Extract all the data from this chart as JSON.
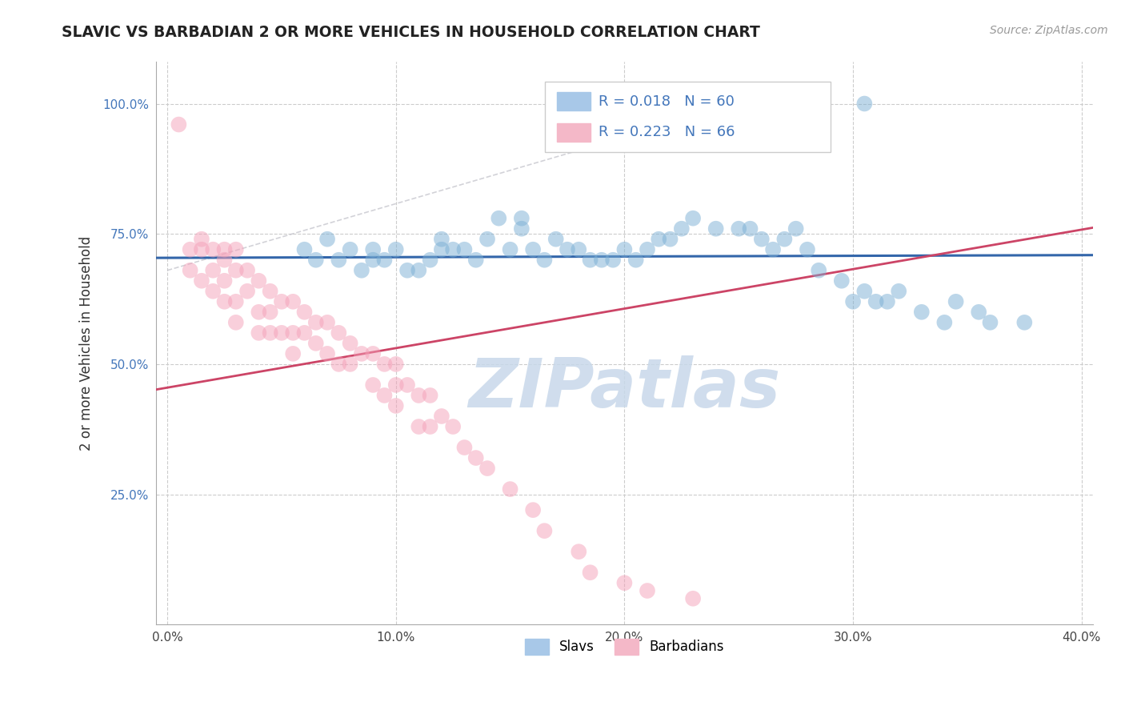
{
  "title": "SLAVIC VS BARBADIAN 2 OR MORE VEHICLES IN HOUSEHOLD CORRELATION CHART",
  "source": "Source: ZipAtlas.com",
  "ylabel": "2 or more Vehicles in Household",
  "x_tick_labels": [
    "0.0%",
    "10.0%",
    "20.0%",
    "30.0%",
    "40.0%"
  ],
  "x_tick_values": [
    0.0,
    0.1,
    0.2,
    0.3,
    0.4
  ],
  "y_tick_labels": [
    "25.0%",
    "50.0%",
    "75.0%",
    "100.0%"
  ],
  "y_tick_values": [
    0.25,
    0.5,
    0.75,
    1.0
  ],
  "xlim": [
    -0.005,
    0.405
  ],
  "ylim": [
    0.0,
    1.08
  ],
  "slavs_color": "#7bafd4",
  "barbadians_color": "#f4a0b8",
  "trend_slavs_color": "#3366aa",
  "trend_barbadians_color": "#cc4466",
  "trend_slavs_dash_color": "#c0c8d8",
  "grid_color": "#cccccc",
  "grid_style": "--",
  "watermark_color": "#c8d8ea",
  "legend_border_color": "#cccccc",
  "legend_text_color": "#4477bb",
  "slavs_legend_color": "#a8c8e8",
  "barbadians_legend_color": "#f4b8c8",
  "slavs_R": 0.018,
  "slavs_N": 60,
  "barbadians_R": 0.223,
  "barbadians_N": 66,
  "slavs_x": [
    0.06,
    0.065,
    0.07,
    0.075,
    0.08,
    0.085,
    0.09,
    0.09,
    0.095,
    0.1,
    0.105,
    0.11,
    0.115,
    0.12,
    0.12,
    0.125,
    0.13,
    0.135,
    0.14,
    0.145,
    0.15,
    0.155,
    0.155,
    0.16,
    0.165,
    0.17,
    0.175,
    0.18,
    0.185,
    0.19,
    0.195,
    0.2,
    0.205,
    0.21,
    0.215,
    0.22,
    0.225,
    0.23,
    0.24,
    0.25,
    0.255,
    0.26,
    0.265,
    0.27,
    0.275,
    0.28,
    0.285,
    0.295,
    0.3,
    0.305,
    0.31,
    0.315,
    0.32,
    0.33,
    0.34,
    0.345,
    0.355,
    0.36,
    0.375,
    0.305
  ],
  "slavs_y": [
    0.72,
    0.7,
    0.74,
    0.7,
    0.72,
    0.68,
    0.72,
    0.7,
    0.7,
    0.72,
    0.68,
    0.68,
    0.7,
    0.74,
    0.72,
    0.72,
    0.72,
    0.7,
    0.74,
    0.78,
    0.72,
    0.78,
    0.76,
    0.72,
    0.7,
    0.74,
    0.72,
    0.72,
    0.7,
    0.7,
    0.7,
    0.72,
    0.7,
    0.72,
    0.74,
    0.74,
    0.76,
    0.78,
    0.76,
    0.76,
    0.76,
    0.74,
    0.72,
    0.74,
    0.76,
    0.72,
    0.68,
    0.66,
    0.62,
    0.64,
    0.62,
    0.62,
    0.64,
    0.6,
    0.58,
    0.62,
    0.6,
    0.58,
    0.58,
    1.0
  ],
  "barbadians_x": [
    0.005,
    0.01,
    0.01,
    0.015,
    0.015,
    0.015,
    0.02,
    0.02,
    0.02,
    0.025,
    0.025,
    0.025,
    0.025,
    0.03,
    0.03,
    0.03,
    0.03,
    0.035,
    0.035,
    0.04,
    0.04,
    0.04,
    0.045,
    0.045,
    0.045,
    0.05,
    0.05,
    0.055,
    0.055,
    0.055,
    0.06,
    0.06,
    0.065,
    0.065,
    0.07,
    0.07,
    0.075,
    0.075,
    0.08,
    0.08,
    0.085,
    0.09,
    0.09,
    0.095,
    0.095,
    0.1,
    0.1,
    0.1,
    0.105,
    0.11,
    0.11,
    0.115,
    0.115,
    0.12,
    0.125,
    0.13,
    0.135,
    0.14,
    0.15,
    0.16,
    0.165,
    0.18,
    0.185,
    0.2,
    0.21,
    0.23
  ],
  "barbadians_y": [
    0.96,
    0.72,
    0.68,
    0.74,
    0.72,
    0.66,
    0.72,
    0.68,
    0.64,
    0.72,
    0.7,
    0.66,
    0.62,
    0.72,
    0.68,
    0.62,
    0.58,
    0.68,
    0.64,
    0.66,
    0.6,
    0.56,
    0.64,
    0.6,
    0.56,
    0.62,
    0.56,
    0.62,
    0.56,
    0.52,
    0.6,
    0.56,
    0.58,
    0.54,
    0.58,
    0.52,
    0.56,
    0.5,
    0.54,
    0.5,
    0.52,
    0.52,
    0.46,
    0.5,
    0.44,
    0.5,
    0.46,
    0.42,
    0.46,
    0.44,
    0.38,
    0.44,
    0.38,
    0.4,
    0.38,
    0.34,
    0.32,
    0.3,
    0.26,
    0.22,
    0.18,
    0.14,
    0.1,
    0.08,
    0.065,
    0.05
  ]
}
